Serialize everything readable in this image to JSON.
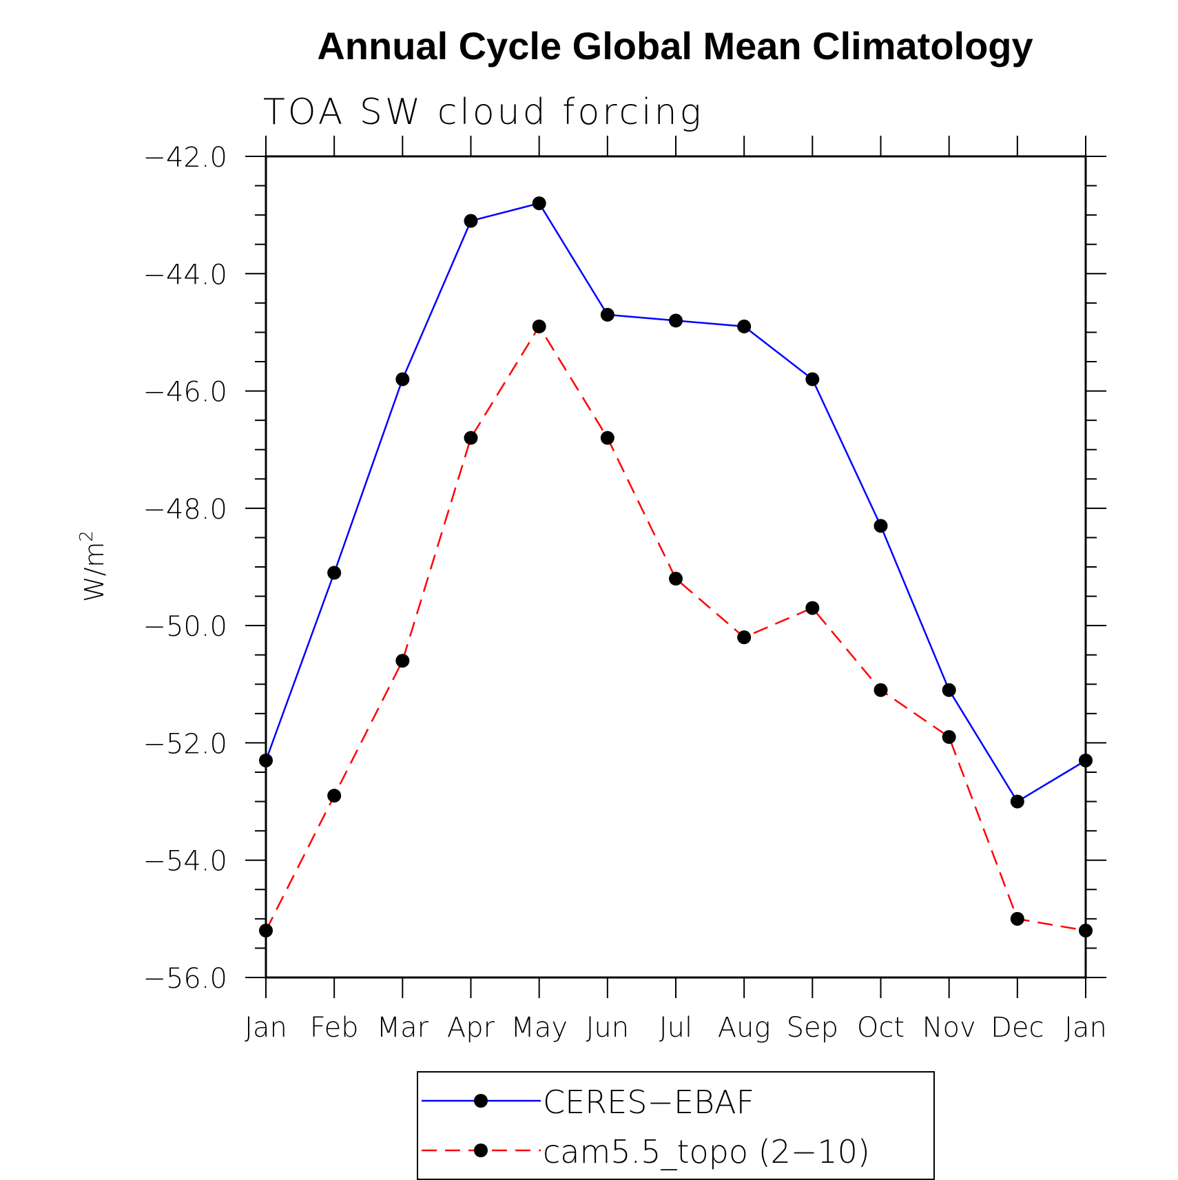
{
  "chart_data": {
    "type": "line",
    "title": "Annual Cycle Global Mean Climatology",
    "subtitle": "TOA SW cloud forcing",
    "ylabel": "W/m",
    "ylabel_sup": "2",
    "xlabel": "",
    "categories": [
      "Jan",
      "Feb",
      "Mar",
      "Apr",
      "May",
      "Jun",
      "Jul",
      "Aug",
      "Sep",
      "Oct",
      "Nov",
      "Dec",
      "Jan"
    ],
    "ylim": [
      -56.0,
      -42.0
    ],
    "yticks": [
      "-42.0",
      "-44.0",
      "-46.0",
      "-48.0",
      "-50.0",
      "-52.0",
      "-54.0",
      "-56.0"
    ],
    "yticks_values": [
      -42.0,
      -44.0,
      -46.0,
      -48.0,
      -50.0,
      -52.0,
      -54.0,
      -56.0
    ],
    "series": [
      {
        "name": "CERES−EBAF",
        "color": "#0000ff",
        "line_style": "solid",
        "marker": "circle",
        "values": [
          -52.3,
          -49.1,
          -45.8,
          -43.1,
          -42.8,
          -44.7,
          -44.8,
          -44.9,
          -45.8,
          -48.3,
          -51.1,
          -53.0,
          -52.3
        ]
      },
      {
        "name": "cam5.5_topo (2−10)",
        "color": "#ff0000",
        "line_style": "dashed",
        "marker": "circle",
        "values": [
          -55.2,
          -52.9,
          -50.6,
          -46.8,
          -44.9,
          -46.8,
          -49.2,
          -50.2,
          -49.7,
          -51.1,
          -51.9,
          -55.0,
          -55.2
        ]
      }
    ],
    "grid": false,
    "legend_position": "bottom"
  }
}
